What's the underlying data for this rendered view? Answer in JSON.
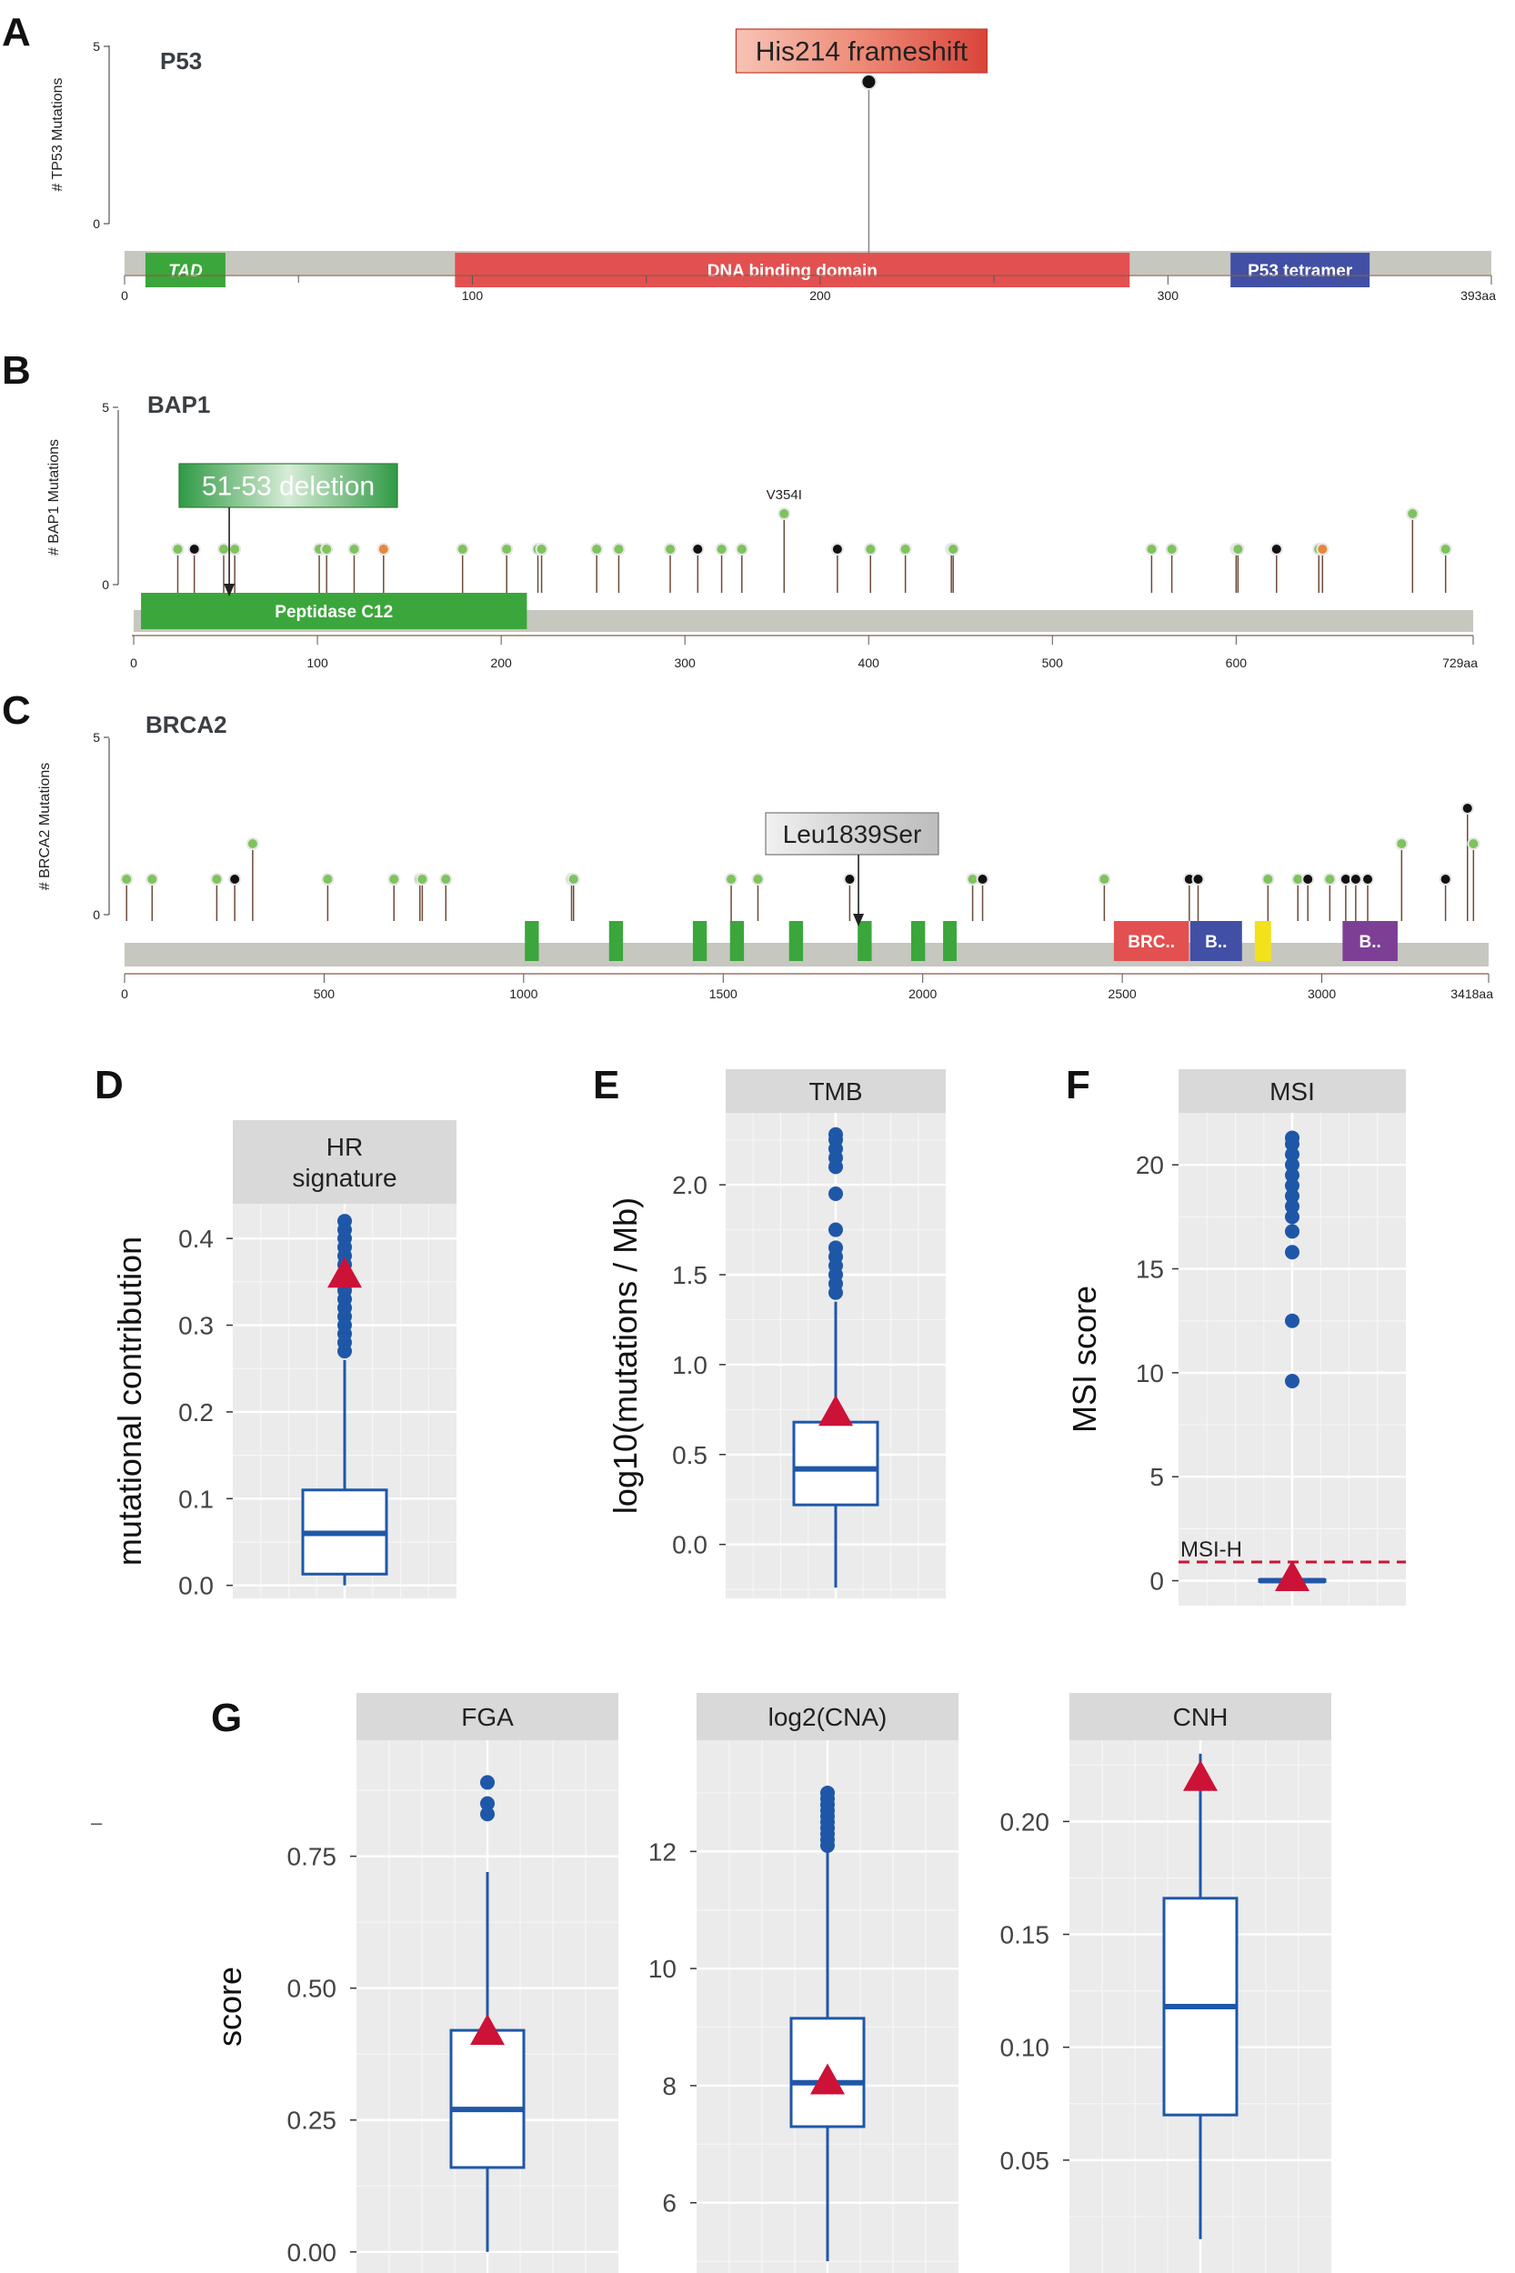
{
  "panel_labels": {
    "A": "A",
    "B": "B",
    "C": "C",
    "D": "D",
    "E": "E",
    "F": "F",
    "G": "G"
  },
  "stray_mark": "–",
  "colors": {
    "backbone": "#c6c7bf",
    "green_domain": "#3ba63b",
    "red_domain": "#e35050",
    "blue_domain": "#4150a5",
    "purple_domain": "#7d3f95",
    "yellow_domain": "#f2e11b",
    "box": "#1f57a8",
    "triangle": "#cc1237",
    "facet_bg": "#d9d9d9",
    "panel_bg": "#ebebeb",
    "pin_green": "#7ec35c",
    "pin_black": "#111111",
    "pin_orange": "#e8873a"
  },
  "chart_data": [
    {
      "type": "lollipop",
      "id": "A",
      "gene": "P53",
      "ylabel": "# TP53 Mutations",
      "ymax": 5,
      "yticks": [
        "0",
        "5"
      ],
      "length": 393,
      "xticks": [
        {
          "v": 0,
          "t": "0"
        },
        {
          "v": 100,
          "t": "100"
        },
        {
          "v": 200,
          "t": "200"
        },
        {
          "v": 300,
          "t": "300"
        },
        {
          "v": 393,
          "t": "393aa"
        }
      ],
      "minor_ticks": [
        50,
        150,
        250,
        350
      ],
      "domains": [
        {
          "start": 6,
          "end": 29,
          "label": "TAD",
          "color": "#3ba63b",
          "italic": true
        },
        {
          "start": 95,
          "end": 289,
          "label": "DNA binding domain",
          "color": "#e35050"
        },
        {
          "start": 318,
          "end": 358,
          "label": "P53 tetramer",
          "color": "#4150a5"
        }
      ],
      "mutations": [
        {
          "pos": 214,
          "count": 4,
          "color": "#111111"
        }
      ],
      "callout": {
        "text": "His214 frameshift",
        "pos": 214,
        "style": "red"
      }
    },
    {
      "type": "lollipop",
      "id": "B",
      "gene": "BAP1",
      "ylabel": "# BAP1 Mutations",
      "ymax": 5,
      "yticks": [
        "0",
        "5"
      ],
      "length": 729,
      "xticks": [
        {
          "v": 0,
          "t": "0"
        },
        {
          "v": 100,
          "t": "100"
        },
        {
          "v": 200,
          "t": "200"
        },
        {
          "v": 300,
          "t": "300"
        },
        {
          "v": 400,
          "t": "400"
        },
        {
          "v": 500,
          "t": "500"
        },
        {
          "v": 600,
          "t": "600"
        },
        {
          "v": 729,
          "t": "729aa"
        }
      ],
      "minor_ticks": [],
      "domains": [
        {
          "start": 4,
          "end": 214,
          "label": "Peptidase C12",
          "color": "#3ba63b"
        }
      ],
      "mutations": [
        {
          "pos": 24,
          "count": 1,
          "color": "#7ec35c"
        },
        {
          "pos": 33,
          "count": 1,
          "color": "#111111"
        },
        {
          "pos": 49,
          "count": 1,
          "color": "#7ec35c"
        },
        {
          "pos": 55,
          "count": 1,
          "color": "#7ec35c"
        },
        {
          "pos": 101,
          "count": 1,
          "color": "#7ec35c"
        },
        {
          "pos": 105,
          "count": 1,
          "color": "#7ec35c"
        },
        {
          "pos": 120,
          "count": 1,
          "color": "#7ec35c"
        },
        {
          "pos": 136,
          "count": 1,
          "color": "#e8873a"
        },
        {
          "pos": 179,
          "count": 1,
          "color": "#7ec35c"
        },
        {
          "pos": 203,
          "count": 1,
          "color": "#7ec35c"
        },
        {
          "pos": 220,
          "count": 1,
          "color": "#7ec35c"
        },
        {
          "pos": 222,
          "count": 1,
          "color": "#7ec35c"
        },
        {
          "pos": 252,
          "count": 1,
          "color": "#7ec35c"
        },
        {
          "pos": 264,
          "count": 1,
          "color": "#7ec35c"
        },
        {
          "pos": 292,
          "count": 1,
          "color": "#7ec35c"
        },
        {
          "pos": 307,
          "count": 1,
          "color": "#111111"
        },
        {
          "pos": 320,
          "count": 1,
          "color": "#7ec35c"
        },
        {
          "pos": 331,
          "count": 1,
          "color": "#7ec35c"
        },
        {
          "pos": 354,
          "count": 2,
          "color": "#7ec35c"
        },
        {
          "pos": 383,
          "count": 1,
          "color": "#111111"
        },
        {
          "pos": 401,
          "count": 1,
          "color": "#7ec35c"
        },
        {
          "pos": 420,
          "count": 1,
          "color": "#7ec35c"
        },
        {
          "pos": 445,
          "count": 1,
          "color": "#7ec35c"
        },
        {
          "pos": 446,
          "count": 1,
          "color": "#7ec35c"
        },
        {
          "pos": 554,
          "count": 1,
          "color": "#7ec35c"
        },
        {
          "pos": 565,
          "count": 1,
          "color": "#7ec35c"
        },
        {
          "pos": 600,
          "count": 1,
          "color": "#7ec35c"
        },
        {
          "pos": 601,
          "count": 1,
          "color": "#7ec35c"
        },
        {
          "pos": 622,
          "count": 1,
          "color": "#111111"
        },
        {
          "pos": 645,
          "count": 1,
          "color": "#7ec35c"
        },
        {
          "pos": 647,
          "count": 1,
          "color": "#e8873a"
        },
        {
          "pos": 696,
          "count": 2,
          "color": "#7ec35c"
        },
        {
          "pos": 714,
          "count": 1,
          "color": "#7ec35c"
        }
      ],
      "annotation": {
        "text": "V354I",
        "pos": 354
      },
      "callout": {
        "text": "51-53 deletion",
        "pos": 52,
        "style": "green"
      }
    },
    {
      "type": "lollipop",
      "id": "C",
      "gene": "BRCA2",
      "ylabel": "# BRCA2 Mutations",
      "ymax": 5,
      "yticks": [
        "0",
        "5"
      ],
      "length": 3418,
      "xticks": [
        {
          "v": 0,
          "t": "0"
        },
        {
          "v": 500,
          "t": "500"
        },
        {
          "v": 1000,
          "t": "1000"
        },
        {
          "v": 1500,
          "t": "1500"
        },
        {
          "v": 2000,
          "t": "2000"
        },
        {
          "v": 2500,
          "t": "2500"
        },
        {
          "v": 3000,
          "t": "3000"
        },
        {
          "v": 3418,
          "t": "3418aa"
        }
      ],
      "minor_ticks": [],
      "domains": [
        {
          "start": 1003,
          "end": 1038,
          "label": "",
          "color": "#3ba63b"
        },
        {
          "start": 1214,
          "end": 1249,
          "label": "",
          "color": "#3ba63b"
        },
        {
          "start": 1424,
          "end": 1459,
          "label": "",
          "color": "#3ba63b"
        },
        {
          "start": 1517,
          "end": 1552,
          "label": "",
          "color": "#3ba63b"
        },
        {
          "start": 1665,
          "end": 1700,
          "label": "",
          "color": "#3ba63b"
        },
        {
          "start": 1837,
          "end": 1872,
          "label": "",
          "color": "#3ba63b"
        },
        {
          "start": 1971,
          "end": 2006,
          "label": "",
          "color": "#3ba63b"
        },
        {
          "start": 2051,
          "end": 2085,
          "label": "",
          "color": "#3ba63b"
        },
        {
          "start": 2479,
          "end": 2667,
          "label": "BRC..",
          "color": "#e35050"
        },
        {
          "start": 2670,
          "end": 2800,
          "label": "B..",
          "color": "#4150a5"
        },
        {
          "start": 2832,
          "end": 2873,
          "label": "",
          "color": "#f2e11b"
        },
        {
          "start": 3052,
          "end": 3190,
          "label": "B..",
          "color": "#7d3f95"
        }
      ],
      "mutations": [
        {
          "pos": 5,
          "count": 1,
          "color": "#7ec35c"
        },
        {
          "pos": 69,
          "count": 1,
          "color": "#7ec35c"
        },
        {
          "pos": 231,
          "count": 1,
          "color": "#7ec35c"
        },
        {
          "pos": 276,
          "count": 1,
          "color": "#111111"
        },
        {
          "pos": 321,
          "count": 2,
          "color": "#7ec35c"
        },
        {
          "pos": 509,
          "count": 1,
          "color": "#7ec35c"
        },
        {
          "pos": 675,
          "count": 1,
          "color": "#7ec35c"
        },
        {
          "pos": 740,
          "count": 1,
          "color": "#7ec35c"
        },
        {
          "pos": 746,
          "count": 1,
          "color": "#7ec35c"
        },
        {
          "pos": 805,
          "count": 1,
          "color": "#7ec35c"
        },
        {
          "pos": 1120,
          "count": 1,
          "color": "#7ec35c"
        },
        {
          "pos": 1125,
          "count": 1,
          "color": "#7ec35c"
        },
        {
          "pos": 1520,
          "count": 1,
          "color": "#7ec35c"
        },
        {
          "pos": 1587,
          "count": 1,
          "color": "#7ec35c"
        },
        {
          "pos": 1817,
          "count": 1,
          "color": "#111111"
        },
        {
          "pos": 2125,
          "count": 1,
          "color": "#7ec35c"
        },
        {
          "pos": 2150,
          "count": 1,
          "color": "#111111"
        },
        {
          "pos": 2455,
          "count": 1,
          "color": "#7ec35c"
        },
        {
          "pos": 2668,
          "count": 1,
          "color": "#111111"
        },
        {
          "pos": 2690,
          "count": 1,
          "color": "#111111"
        },
        {
          "pos": 2865,
          "count": 1,
          "color": "#7ec35c"
        },
        {
          "pos": 2940,
          "count": 1,
          "color": "#7ec35c"
        },
        {
          "pos": 2965,
          "count": 1,
          "color": "#111111"
        },
        {
          "pos": 3020,
          "count": 1,
          "color": "#7ec35c"
        },
        {
          "pos": 3060,
          "count": 1,
          "color": "#111111"
        },
        {
          "pos": 3085,
          "count": 1,
          "color": "#111111"
        },
        {
          "pos": 3115,
          "count": 1,
          "color": "#111111"
        },
        {
          "pos": 3200,
          "count": 2,
          "color": "#7ec35c"
        },
        {
          "pos": 3310,
          "count": 1,
          "color": "#111111"
        },
        {
          "pos": 3365,
          "count": 3,
          "color": "#111111"
        },
        {
          "pos": 3380,
          "count": 2,
          "color": "#7ec35c"
        }
      ],
      "callout": {
        "text": "Leu1839Ser",
        "pos": 1839,
        "style": "gray"
      }
    },
    {
      "type": "boxplot",
      "id": "D",
      "facet": [
        "HR",
        "signature"
      ],
      "ylabel": "mutational contribution",
      "ylim": [
        -0.015,
        0.44
      ],
      "yticks": [
        {
          "v": 0.0,
          "t": "0.0"
        },
        {
          "v": 0.1,
          "t": "0.1"
        },
        {
          "v": 0.2,
          "t": "0.2"
        },
        {
          "v": 0.3,
          "t": "0.3"
        },
        {
          "v": 0.4,
          "t": "0.4"
        }
      ],
      "minor": [
        0.05,
        0.15,
        0.25,
        0.35
      ],
      "box": {
        "whisker_low": 0.0,
        "q1": 0.013,
        "median": 0.06,
        "q3": 0.11,
        "whisker_high": 0.26
      },
      "outliers": [
        0.27,
        0.28,
        0.29,
        0.3,
        0.31,
        0.32,
        0.33,
        0.34,
        0.35,
        0.36,
        0.37,
        0.38,
        0.39,
        0.4,
        0.41,
        0.42
      ],
      "sample": 0.36
    },
    {
      "type": "boxplot",
      "id": "E",
      "facet": [
        "TMB"
      ],
      "ylabel": "log10(mutations / Mb)",
      "ylim": [
        -0.3,
        2.4
      ],
      "yticks": [
        {
          "v": 0.0,
          "t": "0.0"
        },
        {
          "v": 0.5,
          "t": "0.5"
        },
        {
          "v": 1.0,
          "t": "1.0"
        },
        {
          "v": 1.5,
          "t": "1.5"
        },
        {
          "v": 2.0,
          "t": "2.0"
        }
      ],
      "minor": [
        -0.25,
        0.25,
        0.75,
        1.25,
        1.75,
        2.25
      ],
      "box": {
        "whisker_low": -0.24,
        "q1": 0.22,
        "median": 0.42,
        "q3": 0.68,
        "whisker_high": 1.35
      },
      "outliers": [
        1.4,
        1.45,
        1.5,
        1.55,
        1.6,
        1.65,
        1.75,
        1.95,
        2.1,
        2.15,
        2.2,
        2.25,
        2.28
      ],
      "sample": 0.74
    },
    {
      "type": "boxplot",
      "id": "F",
      "facet": [
        "MSI"
      ],
      "ylabel": "MSI score",
      "ylim": [
        -1.2,
        22.5
      ],
      "yticks": [
        {
          "v": 0,
          "t": "0"
        },
        {
          "v": 5,
          "t": "5"
        },
        {
          "v": 10,
          "t": "10"
        },
        {
          "v": 15,
          "t": "15"
        },
        {
          "v": 20,
          "t": "20"
        }
      ],
      "minor": [
        2.5,
        7.5,
        12.5,
        17.5
      ],
      "box": {
        "whisker_low": 0.0,
        "q1": 0.0,
        "median": 0.0,
        "q3": 0.05,
        "whisker_high": 0.1
      },
      "outliers": [
        9.6,
        12.5,
        15.8,
        16.8,
        17.5,
        18.0,
        18.5,
        19.0,
        19.5,
        20.0,
        20.5,
        21.0,
        21.3
      ],
      "sample": 0.2,
      "threshold": {
        "value": 0.9,
        "label": "MSI-H"
      }
    },
    {
      "type": "boxplot",
      "id": "G1",
      "facet": [
        "FGA"
      ],
      "ylabel": "score",
      "ylim": [
        -0.04,
        0.97
      ],
      "yticks": [
        {
          "v": 0.0,
          "t": "0.00"
        },
        {
          "v": 0.25,
          "t": "0.25"
        },
        {
          "v": 0.5,
          "t": "0.50"
        },
        {
          "v": 0.75,
          "t": "0.75"
        }
      ],
      "minor": [
        0.125,
        0.375,
        0.625,
        0.875
      ],
      "box": {
        "whisker_low": 0.0,
        "q1": 0.16,
        "median": 0.27,
        "q3": 0.42,
        "whisker_high": 0.72
      },
      "outliers": [
        0.83,
        0.85,
        0.89
      ],
      "sample": 0.42
    },
    {
      "type": "boxplot",
      "id": "G2",
      "facet": [
        "log2(CNA)"
      ],
      "ylabel": "",
      "ylim": [
        4.8,
        13.9
      ],
      "yticks": [
        {
          "v": 6,
          "t": "6"
        },
        {
          "v": 8,
          "t": "8"
        },
        {
          "v": 10,
          "t": "10"
        },
        {
          "v": 12,
          "t": "12"
        }
      ],
      "minor": [
        5,
        7,
        9,
        11,
        13
      ],
      "box": {
        "whisker_low": 5.0,
        "q1": 7.3,
        "median": 8.05,
        "q3": 9.15,
        "whisker_high": 12.0
      },
      "outliers": [
        12.1,
        12.2,
        12.3,
        12.4,
        12.5,
        12.6,
        12.7,
        12.8,
        12.9,
        13.0
      ],
      "sample": 8.1
    },
    {
      "type": "boxplot",
      "id": "G3",
      "facet": [
        "CNH"
      ],
      "ylabel": "",
      "ylim": [
        0.0,
        0.236
      ],
      "yticks": [
        {
          "v": 0.05,
          "t": "0.05"
        },
        {
          "v": 0.1,
          "t": "0.10"
        },
        {
          "v": 0.15,
          "t": "0.15"
        },
        {
          "v": 0.2,
          "t": "0.20"
        }
      ],
      "minor": [
        0.025,
        0.075,
        0.125,
        0.175,
        0.225
      ],
      "box": {
        "whisker_low": 0.015,
        "q1": 0.07,
        "median": 0.118,
        "q3": 0.166,
        "whisker_high": 0.23
      },
      "outliers": [],
      "sample": 0.22
    }
  ]
}
